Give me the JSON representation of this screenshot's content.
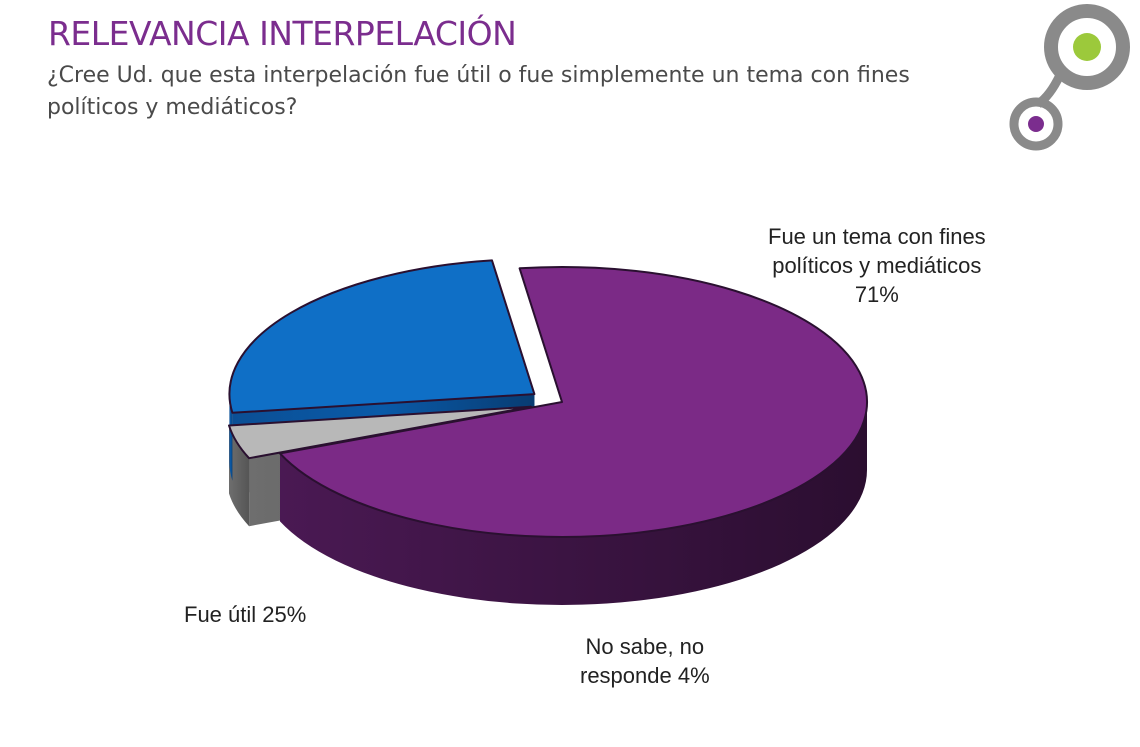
{
  "header": {
    "title": "RELEVANCIA INTERPELACIÓN",
    "question": "¿Cree Ud. que esta interpelación fue útil o fue simplemente un tema con fines políticos y mediáticos?"
  },
  "colors": {
    "title": "#7b2d8e",
    "slice_political": "#7b2a86",
    "slice_useful": "#0f6fc6",
    "slice_unknown": "#b8b8b8",
    "logo_ring": "#8a8a8a",
    "logo_green": "#9cc93b",
    "logo_purple": "#7b2d8e"
  },
  "chart_data": {
    "type": "pie",
    "style": "3d-exploded",
    "slices": [
      {
        "label_lines": [
          "Fue un tema con fines",
          "políticos y mediáticos",
          "71%"
        ],
        "value": 71,
        "color": "#7b2a86"
      },
      {
        "label_lines": [
          "No sabe, no",
          "responde 4%"
        ],
        "value": 4,
        "color": "#b8b8b8"
      },
      {
        "label_lines": [
          "Fue útil 25%"
        ],
        "value": 25,
        "color": "#0f6fc6"
      }
    ]
  }
}
